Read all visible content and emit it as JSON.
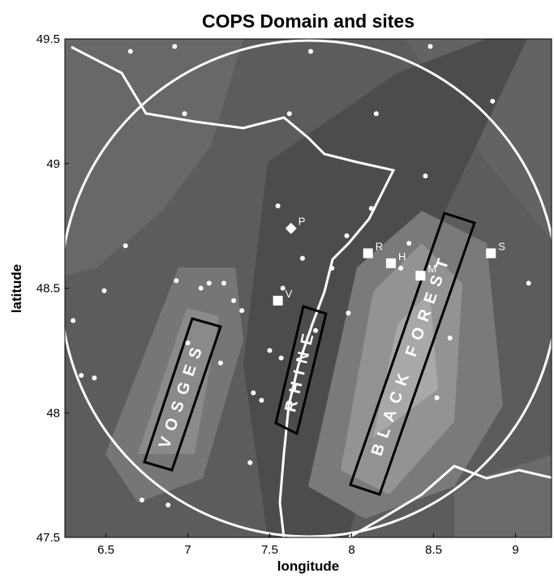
{
  "chart_data": {
    "type": "map",
    "title": "COPS Domain and sites",
    "xlabel": "longitude",
    "ylabel": "latitude",
    "xlim": [
      6.25,
      9.22
    ],
    "ylim": [
      47.5,
      49.5
    ],
    "xticks": [
      6.5,
      7,
      7.5,
      8,
      8.5,
      9
    ],
    "yticks": [
      47.5,
      48,
      48.5,
      49,
      49.5
    ],
    "regions": [
      "VOSGES",
      "RHINE",
      "BLACK FOREST"
    ],
    "sites": [
      {
        "name": "P",
        "lon": 7.63,
        "lat": 48.74,
        "marker": "diamond"
      },
      {
        "name": "V",
        "lon": 7.55,
        "lat": 48.45,
        "marker": "square"
      },
      {
        "name": "R",
        "lon": 8.1,
        "lat": 48.64,
        "marker": "square"
      },
      {
        "name": "H",
        "lon": 8.24,
        "lat": 48.6,
        "marker": "square"
      },
      {
        "name": "M",
        "lon": 8.42,
        "lat": 48.55,
        "marker": "square"
      },
      {
        "name": "S",
        "lon": 8.85,
        "lat": 48.64,
        "marker": "square"
      }
    ],
    "stations": {
      "lon": [
        6.65,
        6.92,
        6.98,
        7.62,
        7.75,
        8.15,
        8.48,
        8.45,
        8.86,
        6.3,
        6.35,
        6.43,
        6.49,
        6.62,
        6.93,
        7.08,
        7.13,
        7.22,
        7.28,
        7.33,
        7.0,
        7.2,
        7.5,
        7.4,
        7.57,
        7.55,
        7.7,
        7.88,
        7.98,
        7.97,
        8.12,
        8.3,
        8.6,
        8.52,
        9.08,
        7.38,
        6.88,
        6.72,
        7.58,
        7.45,
        7.78,
        8.35
      ],
      "lat": [
        49.45,
        49.47,
        49.2,
        49.2,
        49.45,
        49.2,
        49.47,
        48.95,
        49.25,
        48.37,
        48.15,
        48.14,
        48.49,
        48.67,
        48.53,
        48.5,
        48.52,
        48.52,
        48.45,
        48.41,
        48.28,
        48.2,
        48.25,
        48.08,
        48.22,
        48.83,
        48.62,
        48.58,
        48.4,
        48.71,
        48.82,
        48.58,
        48.3,
        48.06,
        48.52,
        47.8,
        47.63,
        47.65,
        48.5,
        48.05,
        48.33,
        48.68
      ]
    }
  }
}
